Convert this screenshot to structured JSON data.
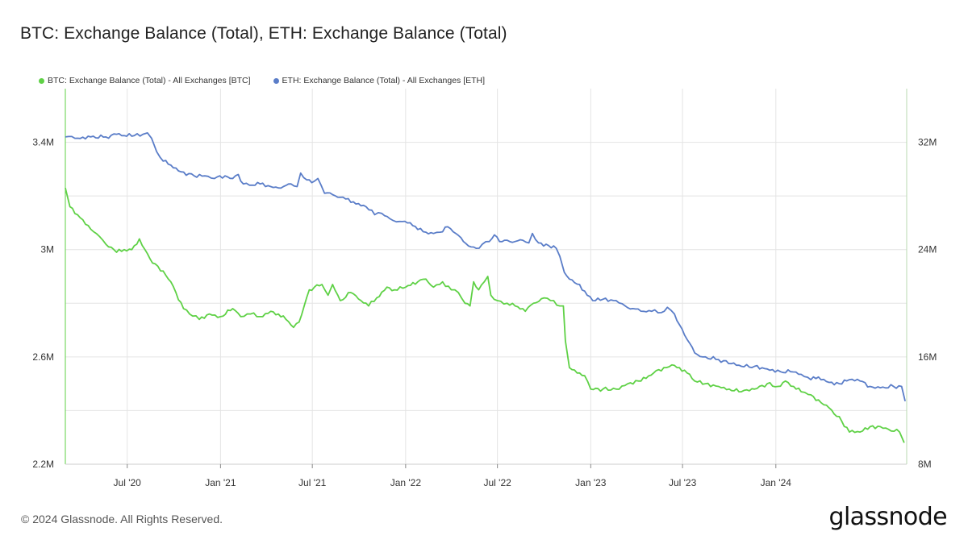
{
  "header": {
    "title": "BTC: Exchange Balance (Total), ETH: Exchange Balance (Total)"
  },
  "footer": {
    "copyright": "© 2024 Glassnode. All Rights Reserved.",
    "logo": "glassnode"
  },
  "chart_data": {
    "type": "line",
    "title": "BTC: Exchange Balance (Total), ETH: Exchange Balance (Total)",
    "x_range": [
      "2020-03-01",
      "2024-09-15"
    ],
    "x_ticks": [
      {
        "date": "2020-07-01",
        "label": "Jul '20"
      },
      {
        "date": "2021-01-01",
        "label": "Jan '21"
      },
      {
        "date": "2021-07-01",
        "label": "Jul '21"
      },
      {
        "date": "2022-01-01",
        "label": "Jan '22"
      },
      {
        "date": "2022-07-01",
        "label": "Jul '22"
      },
      {
        "date": "2023-01-01",
        "label": "Jan '23"
      },
      {
        "date": "2023-07-01",
        "label": "Jul '23"
      },
      {
        "date": "2024-01-01",
        "label": "Jan '24"
      }
    ],
    "y_left": {
      "range": [
        2200000,
        3600000
      ],
      "ticks": [
        2200000,
        2600000,
        3000000,
        3400000
      ],
      "tick_labels": [
        "2.2M",
        "2.6M",
        "3M",
        "3.4M"
      ]
    },
    "y_right": {
      "range": [
        8000000,
        36000000
      ],
      "ticks": [
        8000000,
        16000000,
        24000000,
        32000000
      ],
      "tick_labels": [
        "8M",
        "16M",
        "24M",
        "32M"
      ]
    },
    "grid": true,
    "legend_position": "top-left",
    "series": [
      {
        "name": "BTC: Exchange Balance (Total) - All Exchanges [BTC]",
        "axis": "left",
        "color": "#5fd146",
        "points": [
          [
            "2020-03-01",
            3230000
          ],
          [
            "2020-03-10",
            3160000
          ],
          [
            "2020-03-25",
            3130000
          ],
          [
            "2020-04-15",
            3090000
          ],
          [
            "2020-05-01",
            3060000
          ],
          [
            "2020-05-20",
            3020000
          ],
          [
            "2020-06-10",
            2990000
          ],
          [
            "2020-06-25",
            3000000
          ],
          [
            "2020-07-10",
            3000000
          ],
          [
            "2020-07-25",
            3040000
          ],
          [
            "2020-08-05",
            3000000
          ],
          [
            "2020-08-20",
            2950000
          ],
          [
            "2020-09-10",
            2920000
          ],
          [
            "2020-09-25",
            2880000
          ],
          [
            "2020-10-05",
            2840000
          ],
          [
            "2020-10-20",
            2780000
          ],
          [
            "2020-11-01",
            2760000
          ],
          [
            "2020-11-20",
            2740000
          ],
          [
            "2020-12-10",
            2760000
          ],
          [
            "2021-01-01",
            2750000
          ],
          [
            "2021-01-25",
            2780000
          ],
          [
            "2021-02-10",
            2750000
          ],
          [
            "2021-03-01",
            2760000
          ],
          [
            "2021-03-20",
            2750000
          ],
          [
            "2021-04-10",
            2770000
          ],
          [
            "2021-04-25",
            2760000
          ],
          [
            "2021-05-10",
            2740000
          ],
          [
            "2021-05-25",
            2710000
          ],
          [
            "2021-06-05",
            2730000
          ],
          [
            "2021-06-15",
            2790000
          ],
          [
            "2021-06-25",
            2850000
          ],
          [
            "2021-07-05",
            2860000
          ],
          [
            "2021-07-20",
            2870000
          ],
          [
            "2021-08-01",
            2830000
          ],
          [
            "2021-08-10",
            2870000
          ],
          [
            "2021-08-25",
            2810000
          ],
          [
            "2021-09-15",
            2840000
          ],
          [
            "2021-10-05",
            2810000
          ],
          [
            "2021-10-20",
            2790000
          ],
          [
            "2021-11-05",
            2820000
          ],
          [
            "2021-11-25",
            2860000
          ],
          [
            "2021-12-10",
            2850000
          ],
          [
            "2022-01-01",
            2860000
          ],
          [
            "2022-01-25",
            2880000
          ],
          [
            "2022-02-10",
            2890000
          ],
          [
            "2022-02-25",
            2860000
          ],
          [
            "2022-03-15",
            2880000
          ],
          [
            "2022-04-01",
            2850000
          ],
          [
            "2022-04-15",
            2840000
          ],
          [
            "2022-04-28",
            2800000
          ],
          [
            "2022-05-08",
            2790000
          ],
          [
            "2022-05-15",
            2880000
          ],
          [
            "2022-05-25",
            2850000
          ],
          [
            "2022-06-05",
            2880000
          ],
          [
            "2022-06-12",
            2900000
          ],
          [
            "2022-06-18",
            2830000
          ],
          [
            "2022-07-01",
            2810000
          ],
          [
            "2022-07-20",
            2800000
          ],
          [
            "2022-08-05",
            2790000
          ],
          [
            "2022-08-25",
            2770000
          ],
          [
            "2022-09-10",
            2800000
          ],
          [
            "2022-10-01",
            2820000
          ],
          [
            "2022-10-20",
            2810000
          ],
          [
            "2022-11-01",
            2790000
          ],
          [
            "2022-11-08",
            2790000
          ],
          [
            "2022-11-12",
            2660000
          ],
          [
            "2022-11-20",
            2560000
          ],
          [
            "2022-12-10",
            2540000
          ],
          [
            "2022-12-20",
            2530000
          ],
          [
            "2023-01-01",
            2480000
          ],
          [
            "2023-01-25",
            2480000
          ],
          [
            "2023-02-20",
            2480000
          ],
          [
            "2023-03-15",
            2500000
          ],
          [
            "2023-04-05",
            2510000
          ],
          [
            "2023-04-20",
            2520000
          ],
          [
            "2023-05-05",
            2540000
          ],
          [
            "2023-05-25",
            2560000
          ],
          [
            "2023-06-10",
            2570000
          ],
          [
            "2023-06-25",
            2560000
          ],
          [
            "2023-07-10",
            2540000
          ],
          [
            "2023-07-25",
            2510000
          ],
          [
            "2023-08-15",
            2500000
          ],
          [
            "2023-09-10",
            2490000
          ],
          [
            "2023-10-01",
            2480000
          ],
          [
            "2023-10-25",
            2470000
          ],
          [
            "2023-11-20",
            2480000
          ],
          [
            "2023-12-15",
            2500000
          ],
          [
            "2024-01-05",
            2490000
          ],
          [
            "2024-01-20",
            2510000
          ],
          [
            "2024-02-05",
            2490000
          ],
          [
            "2024-02-20",
            2470000
          ],
          [
            "2024-03-05",
            2460000
          ],
          [
            "2024-03-25",
            2440000
          ],
          [
            "2024-04-15",
            2410000
          ],
          [
            "2024-05-10",
            2360000
          ],
          [
            "2024-05-25",
            2320000
          ],
          [
            "2024-06-15",
            2320000
          ],
          [
            "2024-07-05",
            2340000
          ],
          [
            "2024-07-25",
            2340000
          ],
          [
            "2024-08-10",
            2330000
          ],
          [
            "2024-09-01",
            2320000
          ],
          [
            "2024-09-10",
            2280000
          ]
        ]
      },
      {
        "name": "ETH: Exchange Balance (Total) - All Exchanges [ETH]",
        "axis": "right",
        "color": "#5a7dc8",
        "points": [
          [
            "2020-03-01",
            32400000
          ],
          [
            "2020-03-20",
            32300000
          ],
          [
            "2020-04-20",
            32400000
          ],
          [
            "2020-05-20",
            32400000
          ],
          [
            "2020-06-10",
            32600000
          ],
          [
            "2020-06-25",
            32500000
          ],
          [
            "2020-07-15",
            32500000
          ],
          [
            "2020-08-01",
            32600000
          ],
          [
            "2020-08-10",
            32700000
          ],
          [
            "2020-08-18",
            32300000
          ],
          [
            "2020-08-28",
            31300000
          ],
          [
            "2020-09-10",
            30600000
          ],
          [
            "2020-09-25",
            30300000
          ],
          [
            "2020-10-15",
            29800000
          ],
          [
            "2020-11-10",
            29500000
          ],
          [
            "2020-12-01",
            29500000
          ],
          [
            "2020-12-20",
            29300000
          ],
          [
            "2021-01-10",
            29500000
          ],
          [
            "2021-01-25",
            29300000
          ],
          [
            "2021-02-05",
            29600000
          ],
          [
            "2021-02-15",
            28900000
          ],
          [
            "2021-03-05",
            28800000
          ],
          [
            "2021-03-20",
            28900000
          ],
          [
            "2021-04-10",
            28700000
          ],
          [
            "2021-04-25",
            28600000
          ],
          [
            "2021-05-05",
            28700000
          ],
          [
            "2021-05-20",
            28900000
          ],
          [
            "2021-06-01",
            28700000
          ],
          [
            "2021-06-08",
            29700000
          ],
          [
            "2021-06-20",
            29200000
          ],
          [
            "2021-07-05",
            29100000
          ],
          [
            "2021-07-12",
            29300000
          ],
          [
            "2021-07-25",
            28200000
          ],
          [
            "2021-08-10",
            28100000
          ],
          [
            "2021-08-25",
            27900000
          ],
          [
            "2021-09-10",
            27800000
          ],
          [
            "2021-09-25",
            27400000
          ],
          [
            "2021-10-15",
            27200000
          ],
          [
            "2021-11-01",
            26600000
          ],
          [
            "2021-11-15",
            26700000
          ],
          [
            "2021-12-01",
            26300000
          ],
          [
            "2021-12-20",
            26100000
          ],
          [
            "2022-01-10",
            26000000
          ],
          [
            "2022-01-25",
            25500000
          ],
          [
            "2022-02-10",
            25300000
          ],
          [
            "2022-02-25",
            25200000
          ],
          [
            "2022-03-10",
            25300000
          ],
          [
            "2022-03-25",
            25700000
          ],
          [
            "2022-04-10",
            25200000
          ],
          [
            "2022-04-25",
            24600000
          ],
          [
            "2022-05-10",
            24200000
          ],
          [
            "2022-05-20",
            24100000
          ],
          [
            "2022-06-01",
            24400000
          ],
          [
            "2022-06-15",
            24600000
          ],
          [
            "2022-06-25",
            25100000
          ],
          [
            "2022-07-05",
            24600000
          ],
          [
            "2022-07-20",
            24700000
          ],
          [
            "2022-08-05",
            24600000
          ],
          [
            "2022-08-20",
            24700000
          ],
          [
            "2022-09-01",
            24500000
          ],
          [
            "2022-09-08",
            25200000
          ],
          [
            "2022-09-20",
            24500000
          ],
          [
            "2022-10-10",
            24300000
          ],
          [
            "2022-10-25",
            24100000
          ],
          [
            "2022-11-01",
            23500000
          ],
          [
            "2022-11-10",
            22300000
          ],
          [
            "2022-11-20",
            21800000
          ],
          [
            "2022-12-10",
            21400000
          ],
          [
            "2022-12-25",
            20600000
          ],
          [
            "2023-01-05",
            20200000
          ],
          [
            "2023-01-25",
            20300000
          ],
          [
            "2023-02-20",
            20200000
          ],
          [
            "2023-03-10",
            19800000
          ],
          [
            "2023-03-25",
            19600000
          ],
          [
            "2023-04-15",
            19400000
          ],
          [
            "2023-05-01",
            19400000
          ],
          [
            "2023-05-20",
            19300000
          ],
          [
            "2023-06-01",
            19700000
          ],
          [
            "2023-06-15",
            19200000
          ],
          [
            "2023-06-25",
            18400000
          ],
          [
            "2023-07-10",
            17300000
          ],
          [
            "2023-07-25",
            16300000
          ],
          [
            "2023-08-10",
            16000000
          ],
          [
            "2023-09-10",
            15800000
          ],
          [
            "2023-10-05",
            15500000
          ],
          [
            "2023-10-25",
            15300000
          ],
          [
            "2023-11-20",
            15300000
          ],
          [
            "2023-12-15",
            15100000
          ],
          [
            "2024-01-10",
            14900000
          ],
          [
            "2024-01-30",
            14900000
          ],
          [
            "2024-02-20",
            14700000
          ],
          [
            "2024-03-10",
            14300000
          ],
          [
            "2024-03-25",
            14500000
          ],
          [
            "2024-04-15",
            14100000
          ],
          [
            "2024-05-05",
            14000000
          ],
          [
            "2024-05-25",
            14300000
          ],
          [
            "2024-06-15",
            14200000
          ],
          [
            "2024-07-05",
            13800000
          ],
          [
            "2024-07-25",
            13700000
          ],
          [
            "2024-08-20",
            13800000
          ],
          [
            "2024-09-05",
            13800000
          ],
          [
            "2024-09-12",
            12700000
          ]
        ]
      }
    ]
  }
}
